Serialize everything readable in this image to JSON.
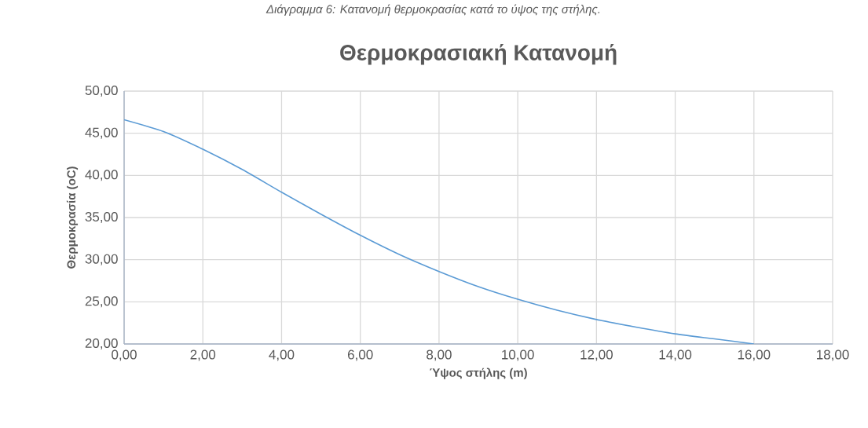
{
  "chart_data": {
    "type": "line",
    "title": "Θερμοκρασιακή Κατανομή",
    "xlabel": "Ύψος στήλης (m)",
    "ylabel": "Θερμοκρασία (oC)",
    "annotations": [
      "Διάγραμμα 6: Κατανομή θερμοκρασίας κατά το ύψος της στήλης."
    ],
    "x": [
      0,
      1,
      2,
      3,
      4,
      5,
      6,
      7,
      8,
      9,
      10,
      11,
      12,
      13,
      14,
      15,
      16
    ],
    "series": [
      {
        "color": "#5b9bd5",
        "values": [
          46.6,
          45.2,
          43.1,
          40.7,
          38.0,
          35.4,
          32.9,
          30.6,
          28.6,
          26.8,
          25.3,
          24.0,
          22.9,
          22.0,
          21.2,
          20.6,
          20.0
        ]
      }
    ],
    "xlim": [
      0,
      18
    ],
    "ylim": [
      20,
      50
    ],
    "xticks": [
      {
        "value": 0,
        "label": "0,00"
      },
      {
        "value": 2,
        "label": "2,00"
      },
      {
        "value": 4,
        "label": "4,00"
      },
      {
        "value": 6,
        "label": "6,00"
      },
      {
        "value": 8,
        "label": "8,00"
      },
      {
        "value": 10,
        "label": "10,00"
      },
      {
        "value": 12,
        "label": "12,00"
      },
      {
        "value": 14,
        "label": "14,00"
      },
      {
        "value": 16,
        "label": "16,00"
      },
      {
        "value": 18,
        "label": "18,00"
      }
    ],
    "yticks": [
      {
        "value": 20,
        "label": "20,00"
      },
      {
        "value": 25,
        "label": "25,00"
      },
      {
        "value": 30,
        "label": "30,00"
      },
      {
        "value": 35,
        "label": "35,00"
      },
      {
        "value": 40,
        "label": "40,00"
      },
      {
        "value": 45,
        "label": "45,00"
      },
      {
        "value": 50,
        "label": "50,00"
      }
    ],
    "grid": true,
    "marker": "none",
    "line_style": "solid"
  }
}
